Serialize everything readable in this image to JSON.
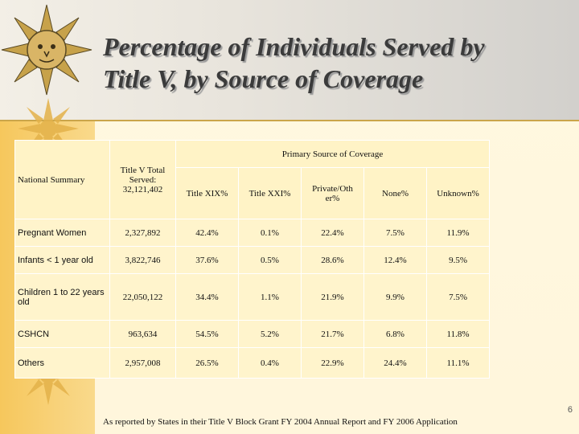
{
  "slide": {
    "title_line1": "Percentage of Individuals Served by",
    "title_line2": "Title V, by Source of Coverage",
    "page_number": "6",
    "footnote": "As reported by States in their Title V Block Grant FY 2004 Annual Report and FY 2006 Application"
  },
  "table": {
    "corner_label": "National Summary",
    "served_header": "Title V Total Served: 32,121,402",
    "group_header": "Primary Source of Coverage",
    "columns": [
      "Title XIX%",
      "Title XXI%",
      "Private/Oth er%",
      "None%",
      "Unknown%"
    ],
    "rows": [
      {
        "label": "Pregnant Women",
        "served": "2,327,892",
        "values": [
          "42.4%",
          "0.1%",
          "22.4%",
          "7.5%",
          "11.9%"
        ]
      },
      {
        "label": "Infants < 1 year old",
        "served": "3,822,746",
        "values": [
          "37.6%",
          "0.5%",
          "28.6%",
          "12.4%",
          "9.5%"
        ]
      },
      {
        "label": "Children 1 to 22 years old",
        "served": "22,050,122",
        "values": [
          "34.4%",
          "1.1%",
          "21.9%",
          "9.9%",
          "7.5%"
        ]
      },
      {
        "label": "CSHCN",
        "served": "963,634",
        "values": [
          "54.5%",
          "5.2%",
          "21.7%",
          "6.8%",
          "11.8%"
        ]
      },
      {
        "label": "Others",
        "served": "2,957,008",
        "values": [
          "26.5%",
          "0.4%",
          "22.9%",
          "24.4%",
          "11.1%"
        ]
      }
    ]
  },
  "colors": {
    "band": "#f6c75c",
    "cell_fill": "#fff4cc",
    "title_text": "#3b3b3b"
  },
  "icons": [
    "sun-icon"
  ]
}
